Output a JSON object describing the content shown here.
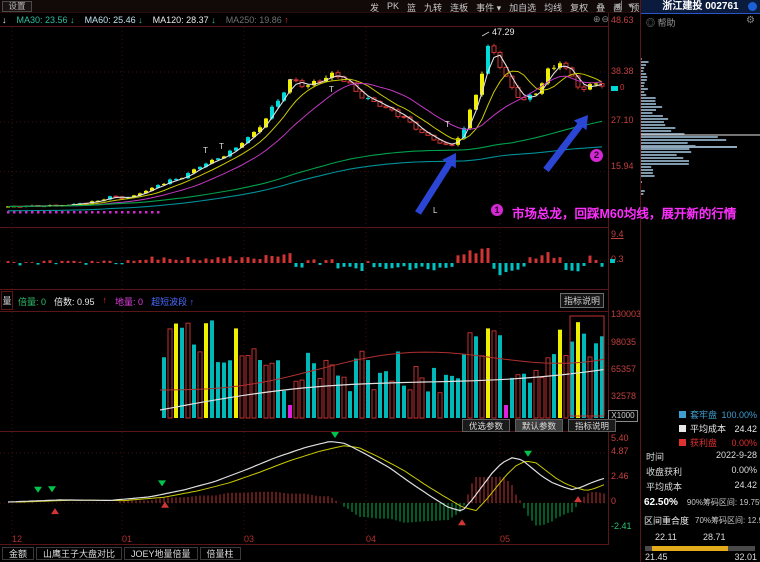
{
  "window": {
    "settings_label": "设置"
  },
  "toolbar": {
    "items": [
      "发",
      "PK",
      "篮",
      "九转",
      "连板",
      "事件 ▾",
      "加自选",
      "均线",
      "复权",
      "叠",
      "画",
      "预测",
      "更多"
    ],
    "nav_icons": "◀▏▾"
  },
  "ma_bar": {
    "lead_arrow": "↓",
    "items": [
      {
        "label": "MA30: 23.56",
        "arrow": "↓",
        "color": "#2fbfa0",
        "arrow_color": "#2fbfa0"
      },
      {
        "label": "MA60: 25.46",
        "arrow": "↓",
        "color": "#bfe2ec",
        "arrow_color": "#2fbfa0"
      },
      {
        "label": "MA120: 28.37",
        "arrow": "↓",
        "color": "#e8e8e8",
        "arrow_color": "#2fbfa0"
      },
      {
        "label": "MA250: 19.86",
        "arrow": "↑",
        "color": "#6f6f6f",
        "arrow_color": "#e03030"
      }
    ],
    "zoom_icons": "⊕⊖"
  },
  "main_chart": {
    "y_labels": [
      "48.63",
      "38.38",
      "27.10",
      "15.94"
    ],
    "peak_label": "47.29",
    "t_marker": "T",
    "l_marker": "L",
    "badge1": "1",
    "badge2": "2",
    "annotation": "市场总龙，回踩M60均线，展开新的行情",
    "axis_marker": "0"
  },
  "panel2": {
    "y_top": "9.4",
    "y_mid": "0.3"
  },
  "panel3": {
    "tab": "量",
    "fields": [
      {
        "text": "倍量: 0",
        "color": "#2fbf6f"
      },
      {
        "text": "倍数: 0.95",
        "color": "#e8e8e8"
      },
      {
        "text": "↑",
        "color": "#e03030"
      },
      {
        "text": "地量: 0",
        "color": "#e040e0"
      },
      {
        "text": "超短波段 ↑",
        "color": "#4b6bff"
      }
    ],
    "help_button": "指标说明",
    "y_labels": [
      "130003",
      "98035",
      "65357",
      "32578"
    ],
    "unit": "X1000",
    "buttons": [
      "优选参数",
      "默认参数",
      "指标说明"
    ]
  },
  "panel4": {
    "y_labels": [
      {
        "text": "5.40",
        "color": "#c84040"
      },
      {
        "text": "4.87",
        "color": "#c84040"
      },
      {
        "text": "2.46",
        "color": "#c84040"
      },
      {
        "text": "0",
        "color": "#c84040"
      },
      {
        "text": "-2.41",
        "color": "#2fbf6f"
      }
    ]
  },
  "x_axis": {
    "labels": [
      "12",
      "01",
      "03",
      "04",
      "05"
    ],
    "positions": [
      12,
      122,
      244,
      366,
      500
    ]
  },
  "bottom_tabs": [
    "金额",
    "山鹰王子大盘对比",
    "JOEY地量倍量",
    "倍量柱"
  ],
  "sidebar": {
    "title": "浙江建投 002761",
    "help": "◎ 帮助",
    "gear_icon": "⚙",
    "legend": [
      {
        "label": "套牢盘",
        "value": "100.00%",
        "color": "#3f9fd0"
      },
      {
        "label": "平均成本",
        "value": "24.42",
        "color": "#e8e8e8"
      },
      {
        "label": "获利盘",
        "value": "0.00%",
        "color": "#e03030"
      }
    ],
    "info": [
      {
        "label": "时间",
        "value": "2022-9-28"
      },
      {
        "label": "收盘获利",
        "value": "0.00%"
      },
      {
        "label": "平均成本",
        "value": "24.42"
      }
    ],
    "stat1": {
      "pct": "62.50%",
      "square_color": "#9a9a9a",
      "label": "90%筹码区间: 19.75%"
    },
    "stat2": {
      "name": "区间重合度",
      "square_color": "#e2ab1c",
      "label": "70%筹码区间: 12.99%"
    },
    "slider": {
      "low": "22.11",
      "high": "28.71",
      "min": "21.45",
      "max": "32.01"
    }
  },
  "chart_data": {
    "type": "candlestick",
    "title": "浙江建投 002761",
    "y_ticks": [
      48.63,
      38.38,
      27.1,
      15.94
    ],
    "x_ticks": [
      "12",
      "01",
      "03",
      "04",
      "05"
    ],
    "peak_price": 47.29,
    "ma_values": {
      "MA30": 23.56,
      "MA60": 25.46,
      "MA120": 28.37,
      "MA250": 19.86
    },
    "price_path": [
      [
        5,
        8.0
      ],
      [
        60,
        8.2
      ],
      [
        90,
        9.0
      ],
      [
        110,
        10.2
      ],
      [
        125,
        9.8
      ],
      [
        145,
        11.5
      ],
      [
        165,
        13.5
      ],
      [
        185,
        15.0
      ],
      [
        200,
        17.0
      ],
      [
        215,
        18.5
      ],
      [
        230,
        20.5
      ],
      [
        245,
        23.0
      ],
      [
        260,
        26.0
      ],
      [
        275,
        31.0
      ],
      [
        292,
        37.0
      ],
      [
        305,
        35.0
      ],
      [
        320,
        36.5
      ],
      [
        335,
        38.0
      ],
      [
        350,
        35.5
      ],
      [
        365,
        32.5
      ],
      [
        385,
        30.5
      ],
      [
        405,
        28.0
      ],
      [
        420,
        25.0
      ],
      [
        437,
        22.5
      ],
      [
        452,
        21.8
      ],
      [
        465,
        26.0
      ],
      [
        478,
        35.0
      ],
      [
        490,
        45.5
      ],
      [
        498,
        41.0
      ],
      [
        510,
        35.0
      ],
      [
        522,
        32.0
      ],
      [
        535,
        33.5
      ],
      [
        548,
        38.5
      ],
      [
        562,
        41.0
      ],
      [
        572,
        37.0
      ],
      [
        582,
        34.0
      ],
      [
        592,
        36.0
      ],
      [
        602,
        35.5
      ]
    ],
    "amount_y_ticks": [
      9.4,
      0.3
    ],
    "volume_y_ticks": [
      130003,
      98035,
      65357,
      32578
    ],
    "volume_unit": "X1000",
    "macd_y_ticks": [
      5.4,
      4.87,
      2.46,
      0,
      -2.41
    ],
    "macd_path": [
      [
        8,
        0.1
      ],
      [
        60,
        0.3
      ],
      [
        110,
        0.25
      ],
      [
        150,
        0.6
      ],
      [
        185,
        1.3
      ],
      [
        215,
        2.1
      ],
      [
        245,
        3.2
      ],
      [
        275,
        4.4
      ],
      [
        305,
        5.4
      ],
      [
        330,
        6.0
      ],
      [
        345,
        5.8
      ],
      [
        365,
        4.8
      ],
      [
        390,
        3.4
      ],
      [
        410,
        2.0
      ],
      [
        430,
        0.7
      ],
      [
        448,
        -0.4
      ],
      [
        462,
        -0.8
      ],
      [
        472,
        0.3
      ],
      [
        482,
        1.6
      ],
      [
        492,
        2.9
      ],
      [
        502,
        3.9
      ],
      [
        512,
        4.4
      ],
      [
        522,
        4.2
      ],
      [
        532,
        3.4
      ],
      [
        542,
        2.6
      ],
      [
        552,
        2.0
      ],
      [
        562,
        1.6
      ],
      [
        572,
        1.3
      ],
      [
        580,
        1.5
      ],
      [
        592,
        2.0
      ],
      [
        604,
        2.4
      ]
    ],
    "chip_distribution": {
      "trapped_pct": 100.0,
      "profit_pct": 0.0,
      "avg_cost": 24.42,
      "date": "2022-9-28",
      "close_profit_pct": 0.0,
      "concentration_pct": 62.5,
      "range_90_pct": 19.75,
      "range_70_pct": 12.99,
      "price_range": [
        21.45,
        32.01
      ],
      "band": [
        22.11,
        28.71
      ]
    }
  }
}
